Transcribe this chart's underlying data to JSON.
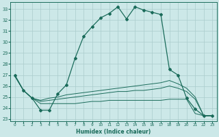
{
  "xlabel": "Humidex (Indice chaleur)",
  "background_color": "#cce8e8",
  "grid_color": "#aacccc",
  "line_color": "#1a6b5a",
  "xlim": [
    -0.5,
    23.5
  ],
  "ylim": [
    22.8,
    33.6
  ],
  "yticks": [
    23,
    24,
    25,
    26,
    27,
    28,
    29,
    30,
    31,
    32,
    33
  ],
  "xticks": [
    0,
    1,
    2,
    3,
    4,
    5,
    6,
    7,
    8,
    9,
    10,
    11,
    12,
    13,
    14,
    15,
    16,
    17,
    18,
    19,
    20,
    21,
    22,
    23
  ],
  "line1_x": [
    0,
    1,
    2,
    3,
    4,
    5,
    6,
    7,
    8,
    9,
    10,
    11,
    12,
    13,
    14,
    15,
    16,
    17,
    18,
    19,
    20,
    21,
    22,
    23
  ],
  "line1_y": [
    27.0,
    25.6,
    24.9,
    23.8,
    23.8,
    25.3,
    26.1,
    28.5,
    30.5,
    31.4,
    32.2,
    32.6,
    33.2,
    32.1,
    33.2,
    32.9,
    32.7,
    32.5,
    27.5,
    27.0,
    24.9,
    23.9,
    23.3,
    23.3
  ],
  "line2_x": [
    0,
    1,
    2,
    3,
    4,
    5,
    6,
    7,
    8,
    9,
    10,
    11,
    12,
    13,
    14,
    15,
    16,
    17,
    18,
    19,
    20,
    21,
    22,
    23
  ],
  "line2_y": [
    26.9,
    25.6,
    24.9,
    24.4,
    24.4,
    24.4,
    24.4,
    24.4,
    24.5,
    24.6,
    24.6,
    24.7,
    24.7,
    24.7,
    24.7,
    24.7,
    24.7,
    24.7,
    24.8,
    24.8,
    24.8,
    23.5,
    23.3,
    23.3
  ],
  "line3_x": [
    0,
    1,
    2,
    3,
    4,
    5,
    6,
    7,
    8,
    9,
    10,
    11,
    12,
    13,
    14,
    15,
    16,
    17,
    18,
    19,
    20,
    21,
    22,
    23
  ],
  "line3_y": [
    26.9,
    25.6,
    24.9,
    24.6,
    24.7,
    24.8,
    24.9,
    25.0,
    25.1,
    25.2,
    25.3,
    25.4,
    25.5,
    25.5,
    25.6,
    25.6,
    25.7,
    25.8,
    26.0,
    25.8,
    25.5,
    24.8,
    23.3,
    23.3
  ],
  "line4_x": [
    0,
    1,
    2,
    3,
    4,
    5,
    6,
    7,
    8,
    9,
    10,
    11,
    12,
    13,
    14,
    15,
    16,
    17,
    18,
    19,
    20,
    21,
    22,
    23
  ],
  "line4_y": [
    26.9,
    25.6,
    24.9,
    24.7,
    24.9,
    25.0,
    25.2,
    25.3,
    25.4,
    25.5,
    25.6,
    25.7,
    25.8,
    25.9,
    26.0,
    26.1,
    26.2,
    26.3,
    26.5,
    26.2,
    25.8,
    25.0,
    23.3,
    23.3
  ]
}
